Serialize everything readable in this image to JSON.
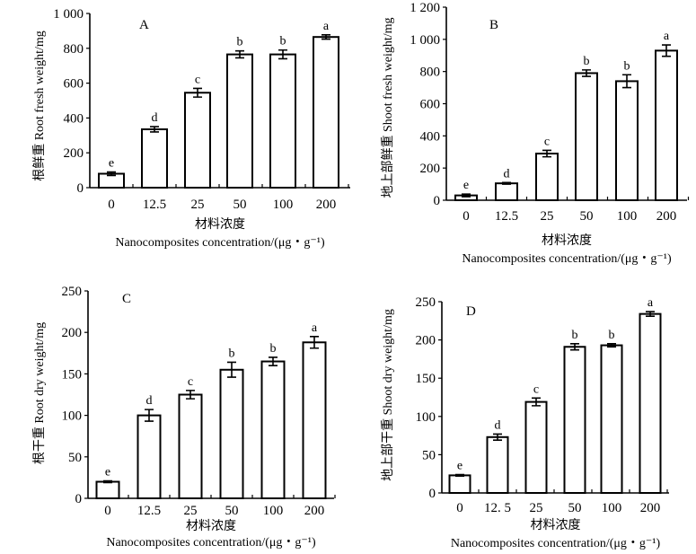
{
  "chart_data": [
    {
      "type": "bar",
      "panel": "A",
      "categories": [
        "0",
        "12.5",
        "25",
        "50",
        "100",
        "200"
      ],
      "values": [
        80,
        335,
        545,
        765,
        765,
        865
      ],
      "errors": [
        10,
        15,
        25,
        20,
        25,
        12
      ],
      "significance": [
        "e",
        "d",
        "c",
        "b",
        "b",
        "a"
      ],
      "ylabel": "根鲜重  Root fresh weight/mg",
      "xlabel_cn": "材料浓度",
      "xlabel_en": "Nanocomposites concentration/(μg・g⁻¹)",
      "yticks": [
        "0",
        "200",
        "400",
        "600",
        "800",
        "1 000"
      ],
      "ylim": [
        0,
        1000
      ]
    },
    {
      "type": "bar",
      "panel": "B",
      "categories": [
        "0",
        "12.5",
        "25",
        "50",
        "100",
        "200"
      ],
      "values": [
        30,
        105,
        290,
        790,
        740,
        930
      ],
      "errors": [
        8,
        5,
        20,
        20,
        40,
        35
      ],
      "significance": [
        "e",
        "d",
        "c",
        "b",
        "b",
        "a"
      ],
      "ylabel": "地上部鲜重  Shoot fresh weight/mg",
      "xlabel_cn": "材料浓度",
      "xlabel_en": "Nanocomposites concentration/(μg・g⁻¹)",
      "yticks": [
        "0",
        "200",
        "400",
        "600",
        "800",
        "1 000",
        "1 200"
      ],
      "ylim": [
        0,
        1200
      ]
    },
    {
      "type": "bar",
      "panel": "C",
      "categories": [
        "0",
        "12.5",
        "25",
        "50",
        "100",
        "200"
      ],
      "values": [
        20,
        100,
        125,
        155,
        165,
        188
      ],
      "errors": [
        1,
        7,
        5,
        9,
        5,
        7
      ],
      "significance": [
        "e",
        "d",
        "c",
        "b",
        "b",
        "a"
      ],
      "ylabel": "根干重  Root dry weight/mg",
      "xlabel_cn": "材料浓度",
      "xlabel_en": "Nanocomposites concentration/(μg・g⁻¹)",
      "yticks": [
        "0",
        "50",
        "100",
        "150",
        "200",
        "250"
      ],
      "ylim": [
        0,
        250
      ]
    },
    {
      "type": "bar",
      "panel": "D",
      "categories": [
        "0",
        "12. 5",
        "25",
        "50",
        "100",
        "200"
      ],
      "values": [
        23,
        73,
        119,
        191,
        193,
        234
      ],
      "errors": [
        1,
        4,
        5,
        4,
        2,
        3
      ],
      "significance": [
        "e",
        "d",
        "c",
        "b",
        "b",
        "a"
      ],
      "ylabel": "地上部干重  Shoot dry weight/mg",
      "xlabel_cn": "材料浓度",
      "xlabel_en": "Nanocomposites concentration/(μg・g⁻¹)",
      "yticks": [
        "0",
        "50",
        "100",
        "150",
        "200",
        "250"
      ],
      "ylim": [
        0,
        250
      ]
    }
  ]
}
